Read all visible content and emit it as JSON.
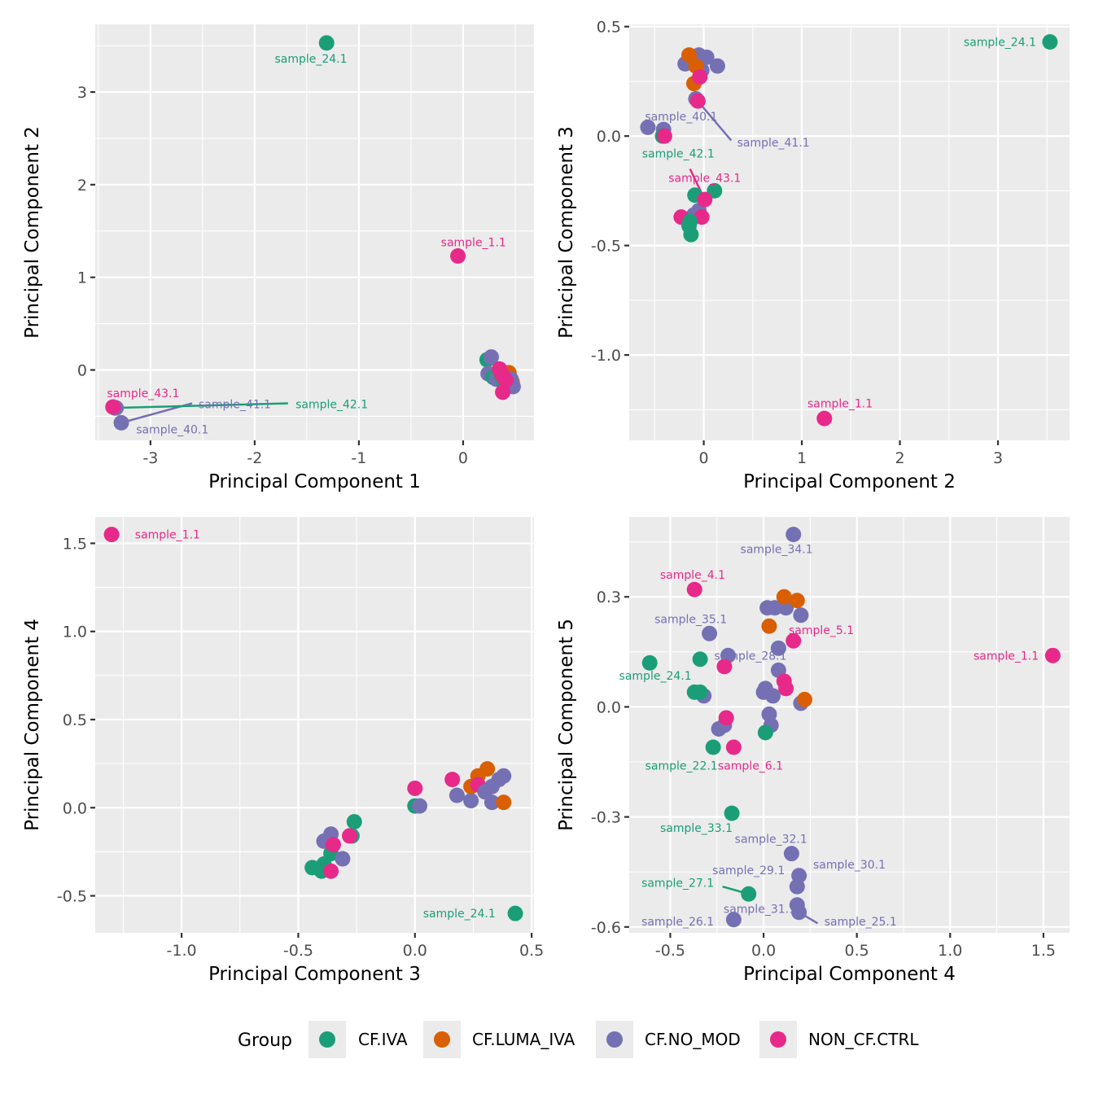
{
  "groups": [
    {
      "name": "CF.IVA",
      "color": "#1B9E77"
    },
    {
      "name": "CF.LUMA_IVA",
      "color": "#D95F02"
    },
    {
      "name": "CF.NO_MOD",
      "color": "#7570B3"
    },
    {
      "name": "NON_CF.CTRL",
      "color": "#E7298A"
    }
  ],
  "legend": {
    "title": "Group",
    "position": "bottom"
  },
  "chart_data": [
    {
      "type": "scatter",
      "xlabel": "Principal Component 1",
      "ylabel": "Principal Component 2",
      "xlim": [
        -3.53,
        0.68
      ],
      "ylim": [
        -0.76,
        3.73
      ],
      "xticks": [
        -3,
        -2,
        -1,
        0
      ],
      "xtick_labels": [
        "-3",
        "-2",
        "-1",
        "0"
      ],
      "yticks": [
        0,
        1,
        2,
        3
      ],
      "ytick_labels": [
        "0",
        "1",
        "2",
        "3"
      ],
      "grid": true,
      "points": [
        {
          "x": -1.31,
          "y": 3.53,
          "group": "CF.IVA"
        },
        {
          "x": -0.05,
          "y": 1.23,
          "group": "NON_CF.CTRL"
        },
        {
          "x": -3.34,
          "y": -0.41,
          "group": "CF.IVA"
        },
        {
          "x": -3.33,
          "y": -0.41,
          "group": "CF.NO_MOD"
        },
        {
          "x": -3.28,
          "y": -0.57,
          "group": "CF.NO_MOD"
        },
        {
          "x": -3.36,
          "y": -0.4,
          "group": "NON_CF.CTRL"
        },
        {
          "x": 0.23,
          "y": 0.11,
          "group": "CF.IVA"
        },
        {
          "x": 0.27,
          "y": 0.14,
          "group": "CF.NO_MOD"
        },
        {
          "x": 0.24,
          "y": -0.04,
          "group": "CF.NO_MOD"
        },
        {
          "x": 0.29,
          "y": -0.08,
          "group": "CF.IVA"
        },
        {
          "x": 0.32,
          "y": -0.1,
          "group": "CF.NO_MOD"
        },
        {
          "x": 0.36,
          "y": -0.05,
          "group": "CF.IVA"
        },
        {
          "x": 0.4,
          "y": -0.07,
          "group": "CF.LUMA_IVA"
        },
        {
          "x": 0.44,
          "y": -0.03,
          "group": "CF.LUMA_IVA"
        },
        {
          "x": 0.47,
          "y": -0.13,
          "group": "CF.LUMA_IVA"
        },
        {
          "x": 0.46,
          "y": -0.1,
          "group": "CF.NO_MOD"
        },
        {
          "x": 0.48,
          "y": -0.18,
          "group": "CF.NO_MOD"
        },
        {
          "x": 0.42,
          "y": -0.15,
          "group": "CF.NO_MOD"
        },
        {
          "x": 0.39,
          "y": -0.13,
          "group": "CF.IVA"
        },
        {
          "x": 0.35,
          "y": 0.01,
          "group": "NON_CF.CTRL"
        },
        {
          "x": 0.37,
          "y": -0.04,
          "group": "NON_CF.CTRL"
        },
        {
          "x": 0.39,
          "y": -0.08,
          "group": "NON_CF.CTRL"
        },
        {
          "x": 0.41,
          "y": -0.11,
          "group": "NON_CF.CTRL"
        },
        {
          "x": 0.38,
          "y": -0.24,
          "group": "NON_CF.CTRL"
        }
      ],
      "labels": [
        {
          "text": "sample_24.1",
          "x": -1.46,
          "y": 3.36,
          "group": "CF.IVA"
        },
        {
          "text": "sample_1.1",
          "x": 0.1,
          "y": 1.38,
          "group": "NON_CF.CTRL"
        },
        {
          "text": "sample_43.1",
          "x": -3.07,
          "y": -0.25,
          "group": "NON_CF.CTRL"
        },
        {
          "text": "sample_41.1",
          "x": -2.19,
          "y": -0.37,
          "group": "CF.NO_MOD",
          "lx": -2.6,
          "ly": -0.36
        },
        {
          "text": "sample_42.1",
          "x": -1.26,
          "y": -0.37,
          "group": "CF.IVA",
          "lx": -1.68,
          "ly": -0.36
        },
        {
          "text": "sample_40.1",
          "x": -2.79,
          "y": -0.64,
          "group": "CF.NO_MOD"
        }
      ]
    },
    {
      "type": "scatter",
      "xlabel": "Principal Component 2",
      "ylabel": "Principal Component 3",
      "xlim": [
        -0.76,
        3.73
      ],
      "ylim": [
        -1.39,
        0.51
      ],
      "xticks": [
        0,
        1,
        2,
        3
      ],
      "xtick_labels": [
        "0",
        "1",
        "2",
        "3"
      ],
      "yticks": [
        0.5,
        0.0,
        -0.5,
        -1.0
      ],
      "ytick_labels": [
        "0.5",
        "0.0",
        "-0.5",
        "-1.0"
      ],
      "grid": true,
      "points": [
        {
          "x": 3.53,
          "y": 0.43,
          "group": "CF.IVA"
        },
        {
          "x": 1.23,
          "y": -1.29,
          "group": "NON_CF.CTRL"
        },
        {
          "x": -0.19,
          "y": 0.33,
          "group": "CF.NO_MOD"
        },
        {
          "x": -0.05,
          "y": 0.37,
          "group": "CF.NO_MOD"
        },
        {
          "x": 0.03,
          "y": 0.36,
          "group": "CF.NO_MOD"
        },
        {
          "x": 0.14,
          "y": 0.32,
          "group": "CF.NO_MOD"
        },
        {
          "x": -0.1,
          "y": 0.33,
          "group": "CF.NO_MOD"
        },
        {
          "x": -0.02,
          "y": 0.3,
          "group": "CF.NO_MOD"
        },
        {
          "x": -0.08,
          "y": 0.17,
          "group": "CF.NO_MOD"
        },
        {
          "x": -0.15,
          "y": 0.37,
          "group": "CF.LUMA_IVA"
        },
        {
          "x": -0.08,
          "y": 0.32,
          "group": "CF.LUMA_IVA"
        },
        {
          "x": -0.1,
          "y": 0.24,
          "group": "CF.LUMA_IVA"
        },
        {
          "x": -0.04,
          "y": 0.27,
          "group": "NON_CF.CTRL"
        },
        {
          "x": -0.06,
          "y": 0.16,
          "group": "NON_CF.CTRL"
        },
        {
          "x": -0.57,
          "y": 0.04,
          "group": "CF.NO_MOD"
        },
        {
          "x": -0.41,
          "y": 0.03,
          "group": "CF.NO_MOD"
        },
        {
          "x": -0.42,
          "y": 0.0,
          "group": "CF.IVA"
        },
        {
          "x": -0.4,
          "y": 0.0,
          "group": "NON_CF.CTRL"
        },
        {
          "x": -0.09,
          "y": -0.27,
          "group": "CF.IVA"
        },
        {
          "x": 0.11,
          "y": -0.25,
          "group": "CF.IVA"
        },
        {
          "x": -0.05,
          "y": -0.34,
          "group": "CF.NO_MOD"
        },
        {
          "x": -0.1,
          "y": -0.36,
          "group": "CF.NO_MOD"
        },
        {
          "x": 0.01,
          "y": -0.29,
          "group": "NON_CF.CTRL"
        },
        {
          "x": -0.23,
          "y": -0.37,
          "group": "NON_CF.CTRL"
        },
        {
          "x": -0.02,
          "y": -0.37,
          "group": "NON_CF.CTRL"
        },
        {
          "x": -0.14,
          "y": -0.39,
          "group": "CF.IVA"
        },
        {
          "x": -0.15,
          "y": -0.41,
          "group": "CF.IVA"
        },
        {
          "x": -0.13,
          "y": -0.45,
          "group": "CF.IVA"
        }
      ],
      "labels": [
        {
          "text": "sample_24.1",
          "x": 3.02,
          "y": 0.43,
          "group": "CF.IVA"
        },
        {
          "text": "sample_1.1",
          "x": 1.39,
          "y": -1.22,
          "group": "NON_CF.CTRL"
        },
        {
          "text": "sample_40.1",
          "x": -0.23,
          "y": 0.09,
          "group": "CF.NO_MOD"
        },
        {
          "text": "sample_41.1",
          "x": 0.71,
          "y": -0.03,
          "group": "CF.NO_MOD",
          "lx": 0.28,
          "ly": -0.02
        },
        {
          "text": "sample_42.1",
          "x": -0.26,
          "y": -0.08,
          "group": "CF.IVA"
        },
        {
          "text": "sample_43.1",
          "x": 0.01,
          "y": -0.19,
          "group": "NON_CF.CTRL",
          "lx": -0.14,
          "ly": -0.15
        }
      ]
    },
    {
      "type": "scatter",
      "xlabel": "Principal Component 3",
      "ylabel": "Principal Component 4",
      "xlim": [
        -1.37,
        0.51
      ],
      "ylim": [
        -0.71,
        1.65
      ],
      "xticks": [
        -1.0,
        -0.5,
        0.0,
        0.5
      ],
      "xtick_labels": [
        "-1.0",
        "-0.5",
        "0.0",
        "0.5"
      ],
      "yticks": [
        1.5,
        1.0,
        0.5,
        0.0,
        -0.5
      ],
      "ytick_labels": [
        "1.5",
        "1.0",
        "0.5",
        "0.0",
        "-0.5"
      ],
      "grid": true,
      "points": [
        {
          "x": -1.3,
          "y": 1.55,
          "group": "NON_CF.CTRL"
        },
        {
          "x": 0.43,
          "y": -0.6,
          "group": "CF.IVA"
        },
        {
          "x": -0.26,
          "y": -0.08,
          "group": "CF.IVA"
        },
        {
          "x": -0.27,
          "y": -0.16,
          "group": "CF.IVA"
        },
        {
          "x": -0.36,
          "y": -0.15,
          "group": "CF.NO_MOD"
        },
        {
          "x": -0.39,
          "y": -0.19,
          "group": "CF.NO_MOD"
        },
        {
          "x": -0.36,
          "y": -0.26,
          "group": "CF.IVA"
        },
        {
          "x": -0.31,
          "y": -0.29,
          "group": "CF.NO_MOD"
        },
        {
          "x": -0.44,
          "y": -0.34,
          "group": "CF.IVA"
        },
        {
          "x": -0.4,
          "y": -0.36,
          "group": "CF.IVA"
        },
        {
          "x": -0.39,
          "y": -0.32,
          "group": "CF.IVA"
        },
        {
          "x": -0.35,
          "y": -0.21,
          "group": "NON_CF.CTRL"
        },
        {
          "x": -0.28,
          "y": -0.16,
          "group": "NON_CF.CTRL"
        },
        {
          "x": -0.36,
          "y": -0.36,
          "group": "NON_CF.CTRL"
        },
        {
          "x": 0.0,
          "y": 0.11,
          "group": "NON_CF.CTRL"
        },
        {
          "x": 0.0,
          "y": 0.01,
          "group": "CF.IVA"
        },
        {
          "x": 0.02,
          "y": 0.01,
          "group": "CF.NO_MOD"
        },
        {
          "x": 0.16,
          "y": 0.16,
          "group": "NON_CF.CTRL"
        },
        {
          "x": 0.18,
          "y": 0.07,
          "group": "CF.NO_MOD"
        },
        {
          "x": 0.24,
          "y": 0.04,
          "group": "CF.NO_MOD"
        },
        {
          "x": 0.24,
          "y": 0.12,
          "group": "CF.LUMA_IVA"
        },
        {
          "x": 0.27,
          "y": 0.18,
          "group": "CF.LUMA_IVA"
        },
        {
          "x": 0.31,
          "y": 0.22,
          "group": "CF.LUMA_IVA"
        },
        {
          "x": 0.27,
          "y": 0.13,
          "group": "NON_CF.CTRL"
        },
        {
          "x": 0.3,
          "y": 0.09,
          "group": "CF.NO_MOD"
        },
        {
          "x": 0.33,
          "y": 0.12,
          "group": "CF.NO_MOD"
        },
        {
          "x": 0.36,
          "y": 0.16,
          "group": "CF.NO_MOD"
        },
        {
          "x": 0.38,
          "y": 0.18,
          "group": "CF.NO_MOD"
        },
        {
          "x": 0.33,
          "y": 0.03,
          "group": "CF.NO_MOD"
        },
        {
          "x": 0.38,
          "y": 0.03,
          "group": "CF.LUMA_IVA"
        }
      ],
      "labels": [
        {
          "text": "sample_1.1",
          "x": -1.06,
          "y": 1.55,
          "group": "NON_CF.CTRL"
        },
        {
          "text": "sample_24.1",
          "x": 0.19,
          "y": -0.6,
          "group": "CF.IVA"
        }
      ]
    },
    {
      "type": "scatter",
      "xlabel": "Principal Component 4",
      "ylabel": "Principal Component 5",
      "xlim": [
        -0.72,
        1.64
      ],
      "ylim": [
        -0.616,
        0.518
      ],
      "xticks": [
        -0.5,
        0.0,
        0.5,
        1.0,
        1.5
      ],
      "xtick_labels": [
        "-0.5",
        "0.0",
        "0.5",
        "1.0",
        "1.5"
      ],
      "yticks": [
        0.3,
        0.0,
        -0.3,
        -0.6
      ],
      "ytick_labels": [
        "0.3",
        "0.0",
        "-0.3",
        "-0.6"
      ],
      "grid": true,
      "points": [
        {
          "x": 0.16,
          "y": 0.47,
          "group": "CF.NO_MOD"
        },
        {
          "x": -0.37,
          "y": 0.32,
          "group": "NON_CF.CTRL"
        },
        {
          "x": 0.02,
          "y": 0.27,
          "group": "CF.NO_MOD"
        },
        {
          "x": 0.06,
          "y": 0.27,
          "group": "CF.NO_MOD"
        },
        {
          "x": 0.12,
          "y": 0.27,
          "group": "CF.NO_MOD"
        },
        {
          "x": 0.2,
          "y": 0.25,
          "group": "CF.NO_MOD"
        },
        {
          "x": 0.11,
          "y": 0.3,
          "group": "CF.LUMA_IVA"
        },
        {
          "x": 0.18,
          "y": 0.29,
          "group": "CF.LUMA_IVA"
        },
        {
          "x": 0.03,
          "y": 0.22,
          "group": "CF.LUMA_IVA"
        },
        {
          "x": 0.16,
          "y": 0.18,
          "group": "NON_CF.CTRL"
        },
        {
          "x": -0.29,
          "y": 0.2,
          "group": "CF.NO_MOD"
        },
        {
          "x": 0.08,
          "y": 0.16,
          "group": "CF.NO_MOD"
        },
        {
          "x": -0.19,
          "y": 0.14,
          "group": "CF.NO_MOD"
        },
        {
          "x": -0.61,
          "y": 0.12,
          "group": "CF.IVA"
        },
        {
          "x": -0.34,
          "y": 0.13,
          "group": "CF.IVA"
        },
        {
          "x": -0.21,
          "y": 0.11,
          "group": "NON_CF.CTRL"
        },
        {
          "x": 0.08,
          "y": 0.1,
          "group": "CF.NO_MOD"
        },
        {
          "x": 1.55,
          "y": 0.14,
          "group": "NON_CF.CTRL"
        },
        {
          "x": 0.11,
          "y": 0.07,
          "group": "NON_CF.CTRL"
        },
        {
          "x": 0.12,
          "y": 0.05,
          "group": "NON_CF.CTRL"
        },
        {
          "x": 0.01,
          "y": 0.05,
          "group": "CF.NO_MOD"
        },
        {
          "x": 0.0,
          "y": 0.04,
          "group": "CF.NO_MOD"
        },
        {
          "x": 0.05,
          "y": 0.03,
          "group": "CF.NO_MOD"
        },
        {
          "x": 0.2,
          "y": 0.01,
          "group": "CF.NO_MOD"
        },
        {
          "x": 0.22,
          "y": 0.02,
          "group": "CF.LUMA_IVA"
        },
        {
          "x": -0.37,
          "y": 0.04,
          "group": "CF.IVA"
        },
        {
          "x": -0.32,
          "y": 0.03,
          "group": "CF.NO_MOD"
        },
        {
          "x": -0.34,
          "y": 0.04,
          "group": "CF.IVA"
        },
        {
          "x": 0.03,
          "y": -0.02,
          "group": "CF.NO_MOD"
        },
        {
          "x": 0.04,
          "y": -0.05,
          "group": "CF.NO_MOD"
        },
        {
          "x": -0.24,
          "y": -0.06,
          "group": "CF.NO_MOD"
        },
        {
          "x": -0.21,
          "y": -0.05,
          "group": "CF.NO_MOD"
        },
        {
          "x": -0.2,
          "y": -0.03,
          "group": "NON_CF.CTRL"
        },
        {
          "x": 0.01,
          "y": -0.07,
          "group": "CF.IVA"
        },
        {
          "x": -0.27,
          "y": -0.11,
          "group": "CF.IVA"
        },
        {
          "x": -0.16,
          "y": -0.11,
          "group": "NON_CF.CTRL"
        },
        {
          "x": -0.17,
          "y": -0.29,
          "group": "CF.IVA"
        },
        {
          "x": 0.15,
          "y": -0.4,
          "group": "CF.NO_MOD"
        },
        {
          "x": 0.19,
          "y": -0.46,
          "group": "CF.NO_MOD"
        },
        {
          "x": 0.18,
          "y": -0.49,
          "group": "CF.NO_MOD"
        },
        {
          "x": -0.08,
          "y": -0.51,
          "group": "CF.IVA"
        },
        {
          "x": 0.18,
          "y": -0.54,
          "group": "CF.NO_MOD"
        },
        {
          "x": 0.19,
          "y": -0.56,
          "group": "CF.NO_MOD"
        },
        {
          "x": -0.16,
          "y": -0.58,
          "group": "CF.NO_MOD"
        }
      ],
      "labels": [
        {
          "text": "sample_34.1",
          "x": 0.07,
          "y": 0.43,
          "group": "CF.NO_MOD"
        },
        {
          "text": "sample_4.1",
          "x": -0.38,
          "y": 0.36,
          "group": "NON_CF.CTRL"
        },
        {
          "text": "sample_35.1",
          "x": -0.39,
          "y": 0.24,
          "group": "CF.NO_MOD"
        },
        {
          "text": "sample_5.1",
          "x": 0.31,
          "y": 0.21,
          "group": "NON_CF.CTRL"
        },
        {
          "text": "sample_28.1",
          "x": -0.07,
          "y": 0.14,
          "group": "CF.NO_MOD"
        },
        {
          "text": "sample_24.1",
          "x": -0.58,
          "y": 0.085,
          "group": "CF.IVA"
        },
        {
          "text": "sample_1.1",
          "x": 1.3,
          "y": 0.14,
          "group": "NON_CF.CTRL"
        },
        {
          "text": "sample_22.1",
          "x": -0.44,
          "y": -0.16,
          "group": "CF.IVA"
        },
        {
          "text": "sample_6.1",
          "x": -0.07,
          "y": -0.16,
          "group": "NON_CF.CTRL"
        },
        {
          "text": "sample_33.1",
          "x": -0.36,
          "y": -0.33,
          "group": "CF.IVA"
        },
        {
          "text": "sample_32.1",
          "x": 0.04,
          "y": -0.36,
          "group": "CF.NO_MOD"
        },
        {
          "text": "sample_30.1",
          "x": 0.46,
          "y": -0.43,
          "group": "CF.NO_MOD"
        },
        {
          "text": "sample_29.1",
          "x": -0.08,
          "y": -0.445,
          "group": "CF.NO_MOD"
        },
        {
          "text": "sample_27.1",
          "x": -0.46,
          "y": -0.48,
          "group": "CF.IVA",
          "lx": -0.22,
          "ly": -0.49
        },
        {
          "text": "sample_31.1",
          "x": -0.02,
          "y": -0.55,
          "group": "CF.NO_MOD"
        },
        {
          "text": "sample_26.1",
          "x": -0.46,
          "y": -0.585,
          "group": "CF.NO_MOD"
        },
        {
          "text": "sample_25.1",
          "x": 0.52,
          "y": -0.585,
          "group": "CF.NO_MOD",
          "lx": 0.29,
          "ly": -0.59
        }
      ]
    }
  ]
}
